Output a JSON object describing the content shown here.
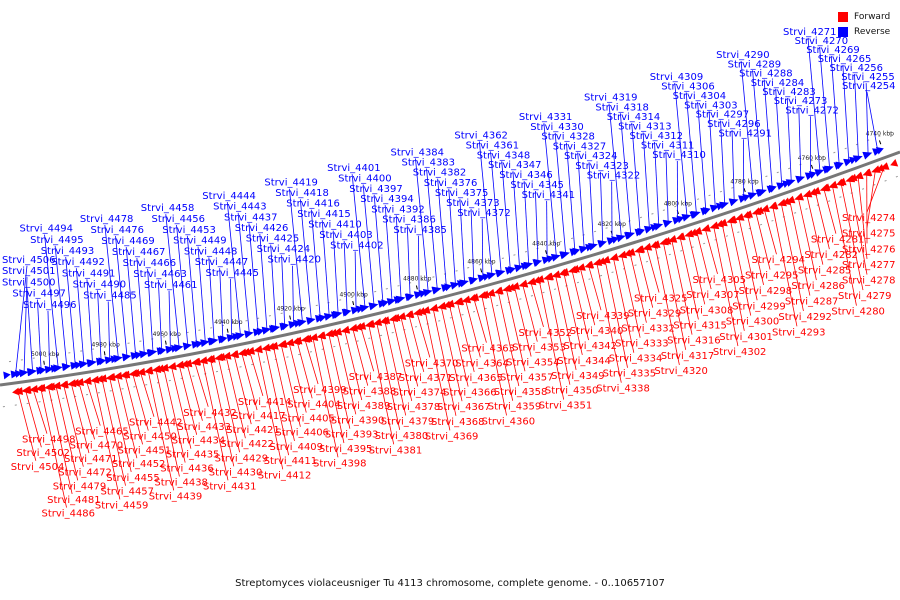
{
  "caption": "Streptomyces violaceusniger Tu 4113 chromosome, complete genome. - 0..10657107",
  "legend": [
    {
      "label": "Forward",
      "color": "#ff0000"
    },
    {
      "label": "Reverse",
      "color": "#0000ff"
    }
  ],
  "colors": {
    "forward": "#ff0000",
    "reverse": "#0000ff",
    "backbone": "#777777"
  },
  "ticks": [
    "5000 kbp",
    "4980 kbp",
    "4960 kbp",
    "4940 kbp",
    "4920 kbp",
    "4900 kbp",
    "4880 kbp",
    "4860 kbp",
    "4840 kbp",
    "4820 kbp",
    "4800 kbp",
    "4780 kbp",
    "4760 kbp",
    "4740 kbp"
  ],
  "reverse_labels": [
    "Strvi_4254",
    "Strvi_4255",
    "Strvi_4256",
    "Strvi_4265",
    "Strvi_4269",
    "Strvi_4270",
    "Strvi_4271",
    "Strvi_4272",
    "Strvi_4273",
    "Strvi_4283",
    "Strvi_4284",
    "Strvi_4288",
    "Strvi_4289",
    "Strvi_4290",
    "Strvi_4291",
    "Strvi_4296",
    "Strvi_4297",
    "Strvi_4303",
    "Strvi_4304",
    "Strvi_4306",
    "Strvi_4309",
    "Strvi_4310",
    "Strvi_4311",
    "Strvi_4312",
    "Strvi_4313",
    "Strvi_4314",
    "Strvi_4318",
    "Strvi_4319",
    "Strvi_4322",
    "Strvi_4323",
    "Strvi_4324",
    "Strvi_4327",
    "Strvi_4328",
    "Strvi_4330",
    "Strvi_4331",
    "Strvi_4341",
    "Strvi_4345",
    "Strvi_4346",
    "Strvi_4347",
    "Strvi_4348",
    "Strvi_4361",
    "Strvi_4362",
    "Strvi_4372",
    "Strvi_4373",
    "Strvi_4375",
    "Strvi_4376",
    "Strvi_4382",
    "Strvi_4383",
    "Strvi_4384",
    "Strvi_4385",
    "Strvi_4386",
    "Strvi_4392",
    "Strvi_4394",
    "Strvi_4397",
    "Strvi_4400",
    "Strvi_4401",
    "Strvi_4402",
    "Strvi_4403",
    "Strvi_4410",
    "Strvi_4415",
    "Strvi_4416",
    "Strvi_4418",
    "Strvi_4419",
    "Strvi_4420",
    "Strvi_4424",
    "Strvi_4425",
    "Strvi_4426",
    "Strvi_4437",
    "Strvi_4443",
    "Strvi_4444",
    "Strvi_4445",
    "Strvi_4447",
    "Strvi_4448",
    "Strvi_4449",
    "Strvi_4453",
    "Strvi_4456",
    "Strvi_4458",
    "Strvi_4461",
    "Strvi_4463",
    "Strvi_4466",
    "Strvi_4467",
    "Strvi_4469",
    "Strvi_4476",
    "Strvi_4478",
    "Strvi_4485",
    "Strvi_4490",
    "Strvi_4491",
    "Strvi_4492",
    "Strvi_4493",
    "Strvi_4495",
    "Strvi_4494",
    "Strvi_4496",
    "Strvi_4497",
    "Strvi_4500",
    "Strvi_4501",
    "Strvi_4506"
  ],
  "forward_labels": [
    "Strvi_4274",
    "Strvi_4275",
    "Strvi_4276",
    "Strvi_4277",
    "Strvi_4278",
    "Strvi_4279",
    "Strvi_4280",
    "Strvi_4281",
    "Strvi_4282",
    "Strvi_4285",
    "Strvi_4286",
    "Strvi_4287",
    "Strvi_4292",
    "Strvi_4293",
    "Strvi_4294",
    "Strvi_4295",
    "Strvi_4298",
    "Strvi_4299",
    "Strvi_4300",
    "Strvi_4301",
    "Strvi_4302",
    "Strvi_4305",
    "Strvi_4307",
    "Strvi_4308",
    "Strvi_4315",
    "Strvi_4316",
    "Strvi_4317",
    "Strvi_4320",
    "Strvi_4325",
    "Strvi_4329",
    "Strvi_4332",
    "Strvi_4333",
    "Strvi_4334",
    "Strvi_4335",
    "Strvi_4338",
    "Strvi_4339",
    "Strvi_4340",
    "Strvi_4342",
    "Strvi_4344",
    "Strvi_4349",
    "Strvi_4350",
    "Strvi_4351",
    "Strvi_4352",
    "Strvi_4353",
    "Strvi_4354",
    "Strvi_4357",
    "Strvi_4358",
    "Strvi_4359",
    "Strvi_4360",
    "Strvi_4363",
    "Strvi_4364",
    "Strvi_4365",
    "Strvi_4366",
    "Strvi_4367",
    "Strvi_4368",
    "Strvi_4369",
    "Strvi_4370",
    "Strvi_4371",
    "Strvi_4374",
    "Strvi_4378",
    "Strvi_4379",
    "Strvi_4380",
    "Strvi_4381",
    "Strvi_4387",
    "Strvi_4388",
    "Strvi_4389",
    "Strvi_4390",
    "Strvi_4393",
    "Strvi_4395",
    "Strvi_4398",
    "Strvi_4399",
    "Strvi_4404",
    "Strvi_4405",
    "Strvi_4406",
    "Strvi_4409",
    "Strvi_4411",
    "Strvi_4412",
    "Strvi_4414",
    "Strvi_4417",
    "Strvi_4421",
    "Strvi_4422",
    "Strvi_4429",
    "Strvi_4430",
    "Strvi_4431",
    "Strvi_4432",
    "Strvi_4433",
    "Strvi_4434",
    "Strvi_4435",
    "Strvi_4436",
    "Strvi_4438",
    "Strvi_4439",
    "Strvi_4442",
    "Strvi_4450",
    "Strvi_4451",
    "Strvi_4452",
    "Strvi_4455",
    "Strvi_4457",
    "Strvi_4459",
    "Strvi_4465",
    "Strvi_4470",
    "Strvi_4471",
    "Strvi_4472",
    "Strvi_4479",
    "Strvi_4481",
    "Strvi_4486",
    "Strvi_4498",
    "Strvi_4502",
    "Strvi_4504"
  ]
}
